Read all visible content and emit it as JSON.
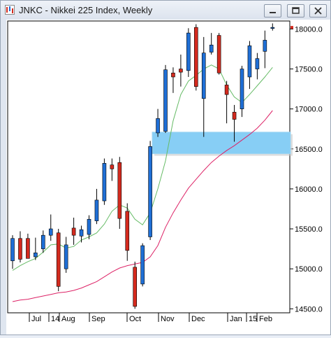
{
  "window": {
    "title": "JNKC - Nikkei 225 Index, Weekly",
    "buttons": [
      "minimize",
      "restore",
      "close"
    ]
  },
  "chart_data": {
    "type": "candlestick",
    "title": "JNKC - Nikkei 225 Index, Weekly",
    "x_labels": [
      "Jul",
      "14",
      "Aug",
      "Sep",
      "Oct",
      "Nov",
      "Dec",
      "Jan",
      "15",
      "Feb"
    ],
    "y_ticks": [
      14500,
      15000,
      15500,
      16000,
      16500,
      17000,
      17500,
      18000
    ],
    "y_tick_labels": [
      "14500.0",
      "15000.0",
      "15500.0",
      "16000.0",
      "16500.0",
      "17000.0",
      "17500.0",
      "18000.0"
    ],
    "ylim": [
      14450,
      18100
    ],
    "colors": {
      "up": "#1f6fd6",
      "down": "#d42a1e",
      "ma_short": "#66bb66",
      "ma_long": "#dd2266",
      "zone": "#87cef5"
    },
    "candles": [
      {
        "o": 15100,
        "h": 15420,
        "l": 15000,
        "c": 15380
      },
      {
        "o": 15380,
        "h": 15470,
        "l": 15080,
        "c": 15120
      },
      {
        "o": 15380,
        "h": 15440,
        "l": 15150,
        "c": 15130
      },
      {
        "o": 15150,
        "h": 15390,
        "l": 15110,
        "c": 15200
      },
      {
        "o": 15250,
        "h": 15480,
        "l": 15200,
        "c": 15420
      },
      {
        "o": 15420,
        "h": 15680,
        "l": 15350,
        "c": 15500
      },
      {
        "o": 15450,
        "h": 15500,
        "l": 14720,
        "c": 14780
      },
      {
        "o": 15000,
        "h": 15400,
        "l": 14950,
        "c": 15300
      },
      {
        "o": 15510,
        "h": 15640,
        "l": 15300,
        "c": 15420
      },
      {
        "o": 15410,
        "h": 15540,
        "l": 15330,
        "c": 15490
      },
      {
        "o": 15430,
        "h": 15670,
        "l": 15370,
        "c": 15620
      },
      {
        "o": 15600,
        "h": 16000,
        "l": 15560,
        "c": 15860
      },
      {
        "o": 15850,
        "h": 16380,
        "l": 15800,
        "c": 16320
      },
      {
        "o": 16300,
        "h": 16380,
        "l": 16100,
        "c": 16250
      },
      {
        "o": 16330,
        "h": 16400,
        "l": 15500,
        "c": 15630
      },
      {
        "o": 15720,
        "h": 15820,
        "l": 15100,
        "c": 15230
      },
      {
        "o": 15020,
        "h": 15090,
        "l": 14500,
        "c": 14530
      },
      {
        "o": 14810,
        "h": 15320,
        "l": 14780,
        "c": 15290
      },
      {
        "o": 15400,
        "h": 16600,
        "l": 15360,
        "c": 16530
      },
      {
        "o": 16700,
        "h": 17000,
        "l": 16650,
        "c": 16880
      },
      {
        "o": 16720,
        "h": 17550,
        "l": 16700,
        "c": 17490
      },
      {
        "o": 17450,
        "h": 17520,
        "l": 17200,
        "c": 17400
      },
      {
        "o": 17500,
        "h": 17680,
        "l": 17280,
        "c": 17460
      },
      {
        "o": 17480,
        "h": 18010,
        "l": 17400,
        "c": 17950
      },
      {
        "o": 18020,
        "h": 18060,
        "l": 17230,
        "c": 17280
      },
      {
        "o": 17130,
        "h": 17900,
        "l": 16650,
        "c": 17700
      },
      {
        "o": 17710,
        "h": 17950,
        "l": 17680,
        "c": 17800
      },
      {
        "o": 17920,
        "h": 17950,
        "l": 17430,
        "c": 17450
      },
      {
        "o": 17300,
        "h": 17350,
        "l": 16820,
        "c": 17180
      },
      {
        "o": 16960,
        "h": 17050,
        "l": 16590,
        "c": 16870
      },
      {
        "o": 17000,
        "h": 17540,
        "l": 16900,
        "c": 17500
      },
      {
        "o": 17400,
        "h": 17850,
        "l": 17250,
        "c": 17790
      },
      {
        "o": 17500,
        "h": 17700,
        "l": 17370,
        "c": 17630
      },
      {
        "o": 17720,
        "h": 17980,
        "l": 17510,
        "c": 17860
      },
      {
        "o": 18010,
        "h": 18070,
        "l": 17980,
        "c": 18020
      }
    ],
    "ma_short": [
      14980,
      15040,
      15090,
      15130,
      15210,
      15300,
      15310,
      15260,
      15280,
      15360,
      15400,
      15450,
      15560,
      15720,
      15800,
      15760,
      15620,
      15550,
      15700,
      16000,
      16350,
      16850,
      17180,
      17350,
      17420,
      17500,
      17550,
      17500,
      17300,
      17150,
      17080,
      17180,
      17290,
      17400,
      17520
    ],
    "ma_long": [
      14590,
      14610,
      14620,
      14640,
      14660,
      14680,
      14700,
      14710,
      14730,
      14760,
      14800,
      14840,
      14900,
      14960,
      15010,
      15040,
      15060,
      15080,
      15150,
      15290,
      15520,
      15700,
      15860,
      16010,
      16120,
      16230,
      16330,
      16410,
      16480,
      16540,
      16610,
      16680,
      16760,
      16860,
      16980
    ],
    "zone": {
      "y_top": 16710,
      "y_bottom": 16440
    }
  }
}
